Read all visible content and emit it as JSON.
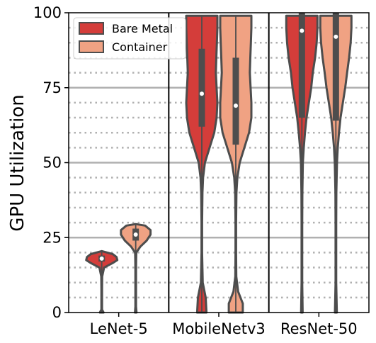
{
  "chart_data": {
    "type": "violin",
    "title": "",
    "xlabel": "",
    "ylabel": "GPU Utilization",
    "ylim": [
      0,
      100
    ],
    "yticks": [
      0,
      25,
      50,
      75,
      100
    ],
    "major_grid": [
      25,
      50,
      75
    ],
    "minor_grid": [
      5,
      10,
      15,
      20,
      30,
      35,
      40,
      45,
      55,
      60,
      65,
      70,
      80,
      85,
      90,
      95
    ],
    "legend_position": "top-left",
    "categories": [
      "LeNet-5",
      "MobileNetv3",
      "ResNet-50"
    ],
    "series": [
      {
        "name": "Bare Metal",
        "color": "#d43d3a",
        "violins": [
          {
            "median": 18,
            "q1": 17,
            "q3": 19,
            "min": 0,
            "max": 20.5,
            "profile": [
              [
                0,
                0.12
              ],
              [
                1,
                0.02
              ],
              [
                4,
                0.02
              ],
              [
                8,
                0.02
              ],
              [
                12,
                0.03
              ],
              [
                15,
                0.15
              ],
              [
                16.5,
                0.7
              ],
              [
                17.5,
                1.0
              ],
              [
                18.5,
                0.95
              ],
              [
                19.5,
                0.7
              ],
              [
                20.5,
                0
              ]
            ]
          },
          {
            "median": 73,
            "q1": 62,
            "q3": 88,
            "min": 0,
            "max": 99,
            "profile": [
              [
                0,
                0.3
              ],
              [
                5,
                0.25
              ],
              [
                10,
                0.06
              ],
              [
                20,
                0.02
              ],
              [
                30,
                0.02
              ],
              [
                40,
                0.04
              ],
              [
                45,
                0.08
              ],
              [
                50,
                0.2
              ],
              [
                55,
                0.5
              ],
              [
                60,
                0.8
              ],
              [
                65,
                0.95
              ],
              [
                70,
                1.0
              ],
              [
                75,
                0.95
              ],
              [
                80,
                0.9
              ],
              [
                85,
                0.93
              ],
              [
                90,
                0.97
              ],
              [
                95,
                1.0
              ],
              [
                99,
                1.0
              ],
              [
                99,
                0
              ]
            ]
          },
          {
            "median": 94,
            "q1": 65,
            "q3": 100,
            "min": 0,
            "max": 100,
            "profile": [
              [
                0,
                0.05
              ],
              [
                10,
                0.02
              ],
              [
                20,
                0.02
              ],
              [
                30,
                0.02
              ],
              [
                40,
                0.03
              ],
              [
                50,
                0.06
              ],
              [
                55,
                0.12
              ],
              [
                60,
                0.2
              ],
              [
                65,
                0.3
              ],
              [
                70,
                0.45
              ],
              [
                75,
                0.6
              ],
              [
                80,
                0.7
              ],
              [
                85,
                0.85
              ],
              [
                90,
                0.95
              ],
              [
                95,
                1.0
              ],
              [
                99,
                1.0
              ],
              [
                99,
                0
              ]
            ]
          }
        ]
      },
      {
        "name": "Container",
        "color": "#f0a283",
        "violins": [
          {
            "median": 26,
            "q1": 24,
            "q3": 28,
            "min": 0,
            "max": 29.5,
            "profile": [
              [
                0,
                0.05
              ],
              [
                2,
                0.02
              ],
              [
                6,
                0.02
              ],
              [
                10,
                0.02
              ],
              [
                15,
                0.02
              ],
              [
                18,
                0.03
              ],
              [
                20,
                0.04
              ],
              [
                22,
                0.3
              ],
              [
                24,
                0.7
              ],
              [
                26,
                0.95
              ],
              [
                27.5,
                0.95
              ],
              [
                29,
                0.6
              ],
              [
                29.5,
                0
              ]
            ]
          },
          {
            "median": 69,
            "q1": 56,
            "q3": 85,
            "min": 0,
            "max": 99,
            "profile": [
              [
                0,
                0.45
              ],
              [
                3,
                0.45
              ],
              [
                7,
                0.15
              ],
              [
                12,
                0.03
              ],
              [
                20,
                0.02
              ],
              [
                30,
                0.02
              ],
              [
                40,
                0.04
              ],
              [
                45,
                0.1
              ],
              [
                50,
                0.25
              ],
              [
                55,
                0.55
              ],
              [
                60,
                0.85
              ],
              [
                65,
                1.0
              ],
              [
                70,
                1.0
              ],
              [
                75,
                0.95
              ],
              [
                80,
                0.9
              ],
              [
                85,
                0.93
              ],
              [
                90,
                0.97
              ],
              [
                95,
                1.0
              ],
              [
                99,
                1.0
              ],
              [
                99,
                0
              ]
            ]
          },
          {
            "median": 92,
            "q1": 64,
            "q3": 100,
            "min": 0,
            "max": 100,
            "profile": [
              [
                0,
                0.06
              ],
              [
                10,
                0.02
              ],
              [
                20,
                0.02
              ],
              [
                30,
                0.02
              ],
              [
                40,
                0.03
              ],
              [
                50,
                0.07
              ],
              [
                55,
                0.12
              ],
              [
                60,
                0.2
              ],
              [
                65,
                0.3
              ],
              [
                70,
                0.45
              ],
              [
                75,
                0.6
              ],
              [
                80,
                0.72
              ],
              [
                85,
                0.85
              ],
              [
                90,
                0.95
              ],
              [
                95,
                1.0
              ],
              [
                99,
                1.0
              ],
              [
                99,
                0
              ]
            ]
          }
        ]
      }
    ]
  }
}
